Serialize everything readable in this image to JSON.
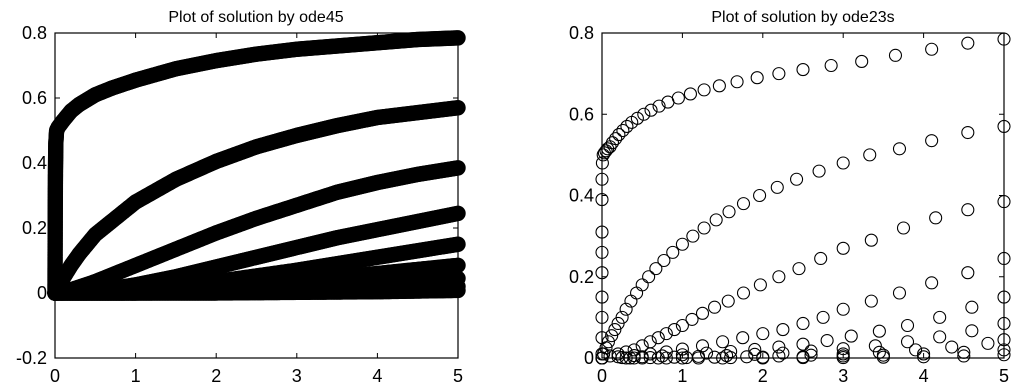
{
  "chart_data": [
    {
      "type": "scatter",
      "title": "Plot of solution by ode45",
      "xlabel": "",
      "ylabel": "",
      "xlim": [
        0,
        5
      ],
      "ylim": [
        -0.2,
        0.8
      ],
      "xticks": [
        "0",
        "1",
        "2",
        "3",
        "4",
        "5"
      ],
      "yticks": [
        "-0.2",
        "0",
        "0.2",
        "0.4",
        "0.6",
        "0.8"
      ],
      "xtick_values": [
        0,
        1,
        2,
        3,
        4,
        5
      ],
      "ytick_values": [
        -0.2,
        0,
        0.2,
        0.4,
        0.6,
        0.8
      ],
      "grid": false,
      "marker": "open circle, very dense (appears as thick solid curves)",
      "series": [
        {
          "x": [
            0,
            0.001,
            0.003,
            0.006,
            0.01,
            0.02,
            0.04,
            0.07,
            0.1,
            0.15,
            0.2,
            0.3,
            0.4,
            0.5,
            0.7,
            1.0,
            1.5,
            2.0,
            2.5,
            3.0,
            3.5,
            4.0,
            4.5,
            5.0
          ],
          "y": [
            0.0,
            0.1,
            0.25,
            0.38,
            0.46,
            0.5,
            0.51,
            0.52,
            0.53,
            0.545,
            0.56,
            0.58,
            0.595,
            0.61,
            0.63,
            0.655,
            0.69,
            0.715,
            0.735,
            0.75,
            0.76,
            0.77,
            0.78,
            0.785
          ]
        },
        {
          "x": [
            0,
            0.05,
            0.1,
            0.2,
            0.3,
            0.5,
            0.7,
            1.0,
            1.5,
            2.0,
            2.5,
            3.0,
            3.5,
            4.0,
            4.5,
            5.0
          ],
          "y": [
            0,
            0.02,
            0.045,
            0.085,
            0.12,
            0.18,
            0.22,
            0.28,
            0.35,
            0.405,
            0.45,
            0.485,
            0.515,
            0.54,
            0.555,
            0.57
          ]
        },
        {
          "x": [
            0,
            0.2,
            0.5,
            1.0,
            1.5,
            2.0,
            2.5,
            3.0,
            3.5,
            4.0,
            4.5,
            5.0
          ],
          "y": [
            0,
            0.01,
            0.035,
            0.085,
            0.135,
            0.185,
            0.23,
            0.27,
            0.31,
            0.34,
            0.365,
            0.385
          ]
        },
        {
          "x": [
            0,
            0.5,
            1.0,
            1.5,
            2.0,
            2.5,
            3.0,
            3.5,
            4.0,
            4.5,
            5.0
          ],
          "y": [
            0,
            0.005,
            0.025,
            0.05,
            0.08,
            0.11,
            0.14,
            0.17,
            0.195,
            0.22,
            0.245
          ]
        },
        {
          "x": [
            0,
            1.0,
            2.0,
            3.0,
            4.0,
            5.0
          ],
          "y": [
            0,
            0.01,
            0.035,
            0.07,
            0.11,
            0.15
          ]
        },
        {
          "x": [
            0,
            1.0,
            2.0,
            3.0,
            4.0,
            5.0
          ],
          "y": [
            0,
            0.004,
            0.015,
            0.035,
            0.06,
            0.085
          ]
        },
        {
          "x": [
            0,
            1.0,
            2.0,
            3.0,
            4.0,
            5.0
          ],
          "y": [
            0,
            0.001,
            0.006,
            0.015,
            0.028,
            0.045
          ]
        },
        {
          "x": [
            0,
            1.0,
            2.0,
            3.0,
            4.0,
            5.0
          ],
          "y": [
            0,
            0.0,
            0.002,
            0.006,
            0.012,
            0.02
          ]
        },
        {
          "x": [
            0,
            1.0,
            2.0,
            3.0,
            4.0,
            5.0
          ],
          "y": [
            0,
            0.0,
            0.0,
            0.002,
            0.004,
            0.008
          ]
        }
      ]
    },
    {
      "type": "scatter",
      "title": "Plot of solution by ode23s",
      "xlabel": "",
      "ylabel": "",
      "xlim": [
        0,
        5
      ],
      "ylim": [
        0,
        0.8
      ],
      "xticks": [
        "0",
        "1",
        "2",
        "3",
        "4",
        "5"
      ],
      "yticks": [
        "0",
        "0.2",
        "0.4",
        "0.6",
        "0.8"
      ],
      "xtick_values": [
        0,
        1,
        2,
        3,
        4,
        5
      ],
      "ytick_values": [
        0,
        0.2,
        0.4,
        0.6,
        0.8
      ],
      "grid": false,
      "marker": "open circle",
      "series": [
        {
          "x": [
            0,
            0,
            0,
            0,
            0,
            0,
            0,
            0,
            0,
            0.005,
            0.015,
            0.03,
            0.05,
            0.07,
            0.1,
            0.13,
            0.17,
            0.21,
            0.26,
            0.31,
            0.37,
            0.44,
            0.52,
            0.61,
            0.71,
            0.82,
            0.95,
            1.1,
            1.27,
            1.46,
            1.68,
            1.93,
            2.2,
            2.5,
            2.85,
            3.23,
            3.65,
            4.1,
            4.55,
            5.0
          ],
          "y": [
            0.01,
            0.05,
            0.1,
            0.15,
            0.21,
            0.26,
            0.31,
            0.39,
            0.44,
            0.48,
            0.5,
            0.505,
            0.51,
            0.515,
            0.52,
            0.53,
            0.54,
            0.55,
            0.56,
            0.57,
            0.58,
            0.59,
            0.6,
            0.61,
            0.62,
            0.63,
            0.64,
            0.65,
            0.66,
            0.67,
            0.68,
            0.69,
            0.7,
            0.71,
            0.72,
            0.73,
            0.745,
            0.76,
            0.775,
            0.785
          ]
        },
        {
          "x": [
            0,
            0.02,
            0.05,
            0.08,
            0.12,
            0.16,
            0.2,
            0.25,
            0.3,
            0.36,
            0.43,
            0.5,
            0.58,
            0.67,
            0.77,
            0.88,
            1.0,
            1.13,
            1.27,
            1.42,
            1.58,
            1.76,
            1.96,
            2.18,
            2.42,
            2.7,
            3.0,
            3.33,
            3.7,
            4.1,
            4.55,
            5.0
          ],
          "y": [
            0.0,
            0.01,
            0.025,
            0.04,
            0.055,
            0.07,
            0.085,
            0.1,
            0.12,
            0.14,
            0.16,
            0.18,
            0.2,
            0.22,
            0.24,
            0.26,
            0.28,
            0.3,
            0.32,
            0.34,
            0.36,
            0.38,
            0.4,
            0.42,
            0.44,
            0.46,
            0.48,
            0.5,
            0.515,
            0.535,
            0.555,
            0.57
          ]
        },
        {
          "x": [
            0,
            0.1,
            0.2,
            0.3,
            0.4,
            0.5,
            0.6,
            0.7,
            0.8,
            0.9,
            1.0,
            1.12,
            1.25,
            1.4,
            1.57,
            1.76,
            1.97,
            2.2,
            2.45,
            2.72,
            3.0,
            3.35,
            3.75,
            4.15,
            4.55,
            5.0
          ],
          "y": [
            0.0,
            0.005,
            0.01,
            0.015,
            0.02,
            0.03,
            0.04,
            0.05,
            0.06,
            0.07,
            0.08,
            0.095,
            0.11,
            0.125,
            0.14,
            0.16,
            0.18,
            0.2,
            0.22,
            0.245,
            0.27,
            0.29,
            0.32,
            0.345,
            0.365,
            0.385
          ]
        },
        {
          "x": [
            0,
            0.2,
            0.4,
            0.6,
            0.8,
            1.0,
            1.25,
            1.5,
            1.75,
            2.0,
            2.25,
            2.5,
            2.75,
            3.0,
            3.35,
            3.7,
            4.1,
            4.55,
            5.0
          ],
          "y": [
            0.0,
            0.003,
            0.006,
            0.01,
            0.015,
            0.022,
            0.03,
            0.04,
            0.05,
            0.06,
            0.07,
            0.085,
            0.1,
            0.12,
            0.14,
            0.16,
            0.185,
            0.21,
            0.245
          ]
        },
        {
          "x": [
            0,
            0.25,
            0.5,
            0.75,
            1.0,
            1.3,
            1.6,
            1.9,
            2.2,
            2.5,
            2.8,
            3.1,
            3.45,
            3.8,
            4.2,
            4.6,
            5.0
          ],
          "y": [
            0.0,
            0.001,
            0.003,
            0.005,
            0.008,
            0.012,
            0.016,
            0.021,
            0.027,
            0.034,
            0.043,
            0.054,
            0.066,
            0.08,
            0.1,
            0.125,
            0.15
          ]
        },
        {
          "x": [
            0,
            0.3,
            0.6,
            0.9,
            1.2,
            1.55,
            1.9,
            2.25,
            2.6,
            3.0,
            3.4,
            3.8,
            4.2,
            4.6,
            5.0
          ],
          "y": [
            0.0,
            0.0,
            0.001,
            0.002,
            0.004,
            0.006,
            0.009,
            0.012,
            0.017,
            0.023,
            0.03,
            0.04,
            0.052,
            0.067,
            0.085
          ]
        },
        {
          "x": [
            0,
            0.35,
            0.7,
            1.05,
            1.4,
            1.8,
            2.2,
            2.6,
            3.0,
            3.45,
            3.9,
            4.35,
            4.8,
            5.0
          ],
          "y": [
            0.0,
            0.0,
            0.0,
            0.001,
            0.002,
            0.003,
            0.005,
            0.007,
            0.01,
            0.014,
            0.02,
            0.027,
            0.036,
            0.045
          ]
        },
        {
          "x": [
            0,
            0.4,
            0.8,
            1.2,
            1.6,
            2.0,
            2.5,
            3.0,
            3.5,
            4.0,
            4.5,
            5.0
          ],
          "y": [
            0.0,
            0.0,
            0.0,
            0.0,
            0.001,
            0.002,
            0.003,
            0.005,
            0.007,
            0.01,
            0.014,
            0.02
          ]
        },
        {
          "x": [
            0,
            0.5,
            1.0,
            1.5,
            2.0,
            2.5,
            3.0,
            3.5,
            4.0,
            4.5,
            5.0
          ],
          "y": [
            0.0,
            0.0,
            0.0,
            0.0,
            0.0,
            0.001,
            0.001,
            0.002,
            0.003,
            0.005,
            0.008
          ]
        }
      ]
    }
  ]
}
